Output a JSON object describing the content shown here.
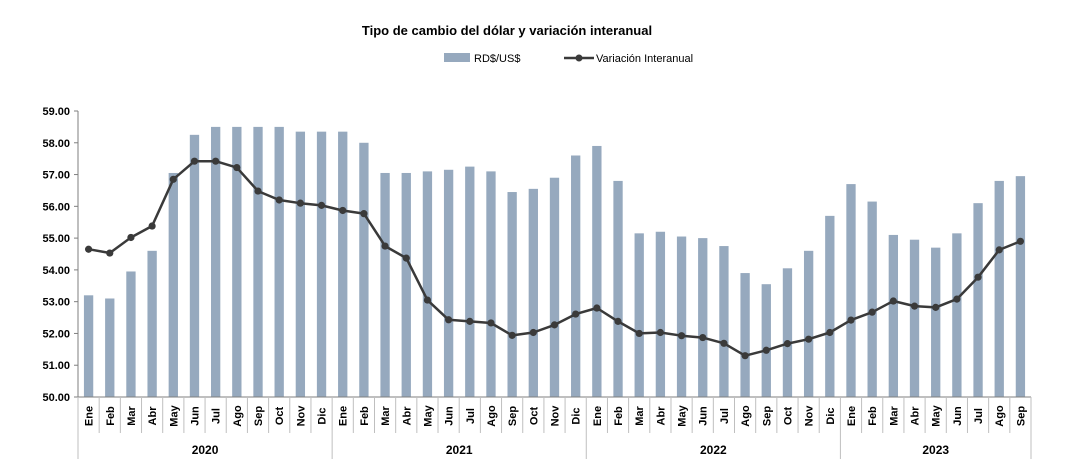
{
  "chart_data": {
    "type": "bar",
    "title": "Tipo de cambio del dólar y variación interanual",
    "xlabel": "",
    "ylabel": "",
    "ylim": [
      50,
      59
    ],
    "yticks": [
      "50.00",
      "51.00",
      "52.00",
      "53.00",
      "54.00",
      "55.00",
      "56.00",
      "57.00",
      "58.00",
      "59.00"
    ],
    "grid": false,
    "legend_position": "top-center",
    "categories": [
      "Ene",
      "Feb",
      "Mar",
      "Abr",
      "May",
      "Jun",
      "Jul",
      "Ago",
      "Sep",
      "Oct",
      "Nov",
      "Dic",
      "Ene",
      "Feb",
      "Mar",
      "Abr",
      "May",
      "Jun",
      "Jul",
      "Ago",
      "Sep",
      "Oct",
      "Nov",
      "Dic",
      "Ene",
      "Feb",
      "Mar",
      "Abr",
      "May",
      "Jun",
      "Jul",
      "Ago",
      "Sep",
      "Oct",
      "Nov",
      "Dic",
      "Ene",
      "Feb",
      "Mar",
      "Abr",
      "May",
      "Jun",
      "Jul",
      "Ago",
      "Sep"
    ],
    "years": [
      {
        "label": "2020",
        "start": 0,
        "end": 11
      },
      {
        "label": "2021",
        "start": 12,
        "end": 23
      },
      {
        "label": "2022",
        "start": 24,
        "end": 35
      },
      {
        "label": "2023",
        "start": 36,
        "end": 44
      }
    ],
    "series": [
      {
        "name": "RD$/US$",
        "type": "bar",
        "color": "#96A9BE",
        "values": [
          53.2,
          53.1,
          53.95,
          54.6,
          57.05,
          58.25,
          58.5,
          58.5,
          58.5,
          58.5,
          58.35,
          58.35,
          58.35,
          58.0,
          57.05,
          57.05,
          57.1,
          57.15,
          57.25,
          57.1,
          56.45,
          56.55,
          56.9,
          57.6,
          57.9,
          56.8,
          55.15,
          55.2,
          55.05,
          55.0,
          54.75,
          53.9,
          53.55,
          54.05,
          54.6,
          55.7,
          56.7,
          56.15,
          55.1,
          54.95,
          54.7,
          55.15,
          56.1,
          56.8,
          56.95
        ]
      },
      {
        "name": "Variación Interanual",
        "type": "line",
        "color": "#3A3A3A",
        "values": [
          54.65,
          54.53,
          55.02,
          55.38,
          56.85,
          57.42,
          57.42,
          57.22,
          56.48,
          56.2,
          56.1,
          56.03,
          55.87,
          55.77,
          54.75,
          54.37,
          53.05,
          52.43,
          52.38,
          52.33,
          51.94,
          52.03,
          52.27,
          52.61,
          52.8,
          52.38,
          52.0,
          52.03,
          51.93,
          51.87,
          51.69,
          51.3,
          51.47,
          51.68,
          51.82,
          52.03,
          52.42,
          52.67,
          53.02,
          52.86,
          52.82,
          53.08,
          53.77,
          54.63,
          54.9
        ]
      }
    ]
  }
}
